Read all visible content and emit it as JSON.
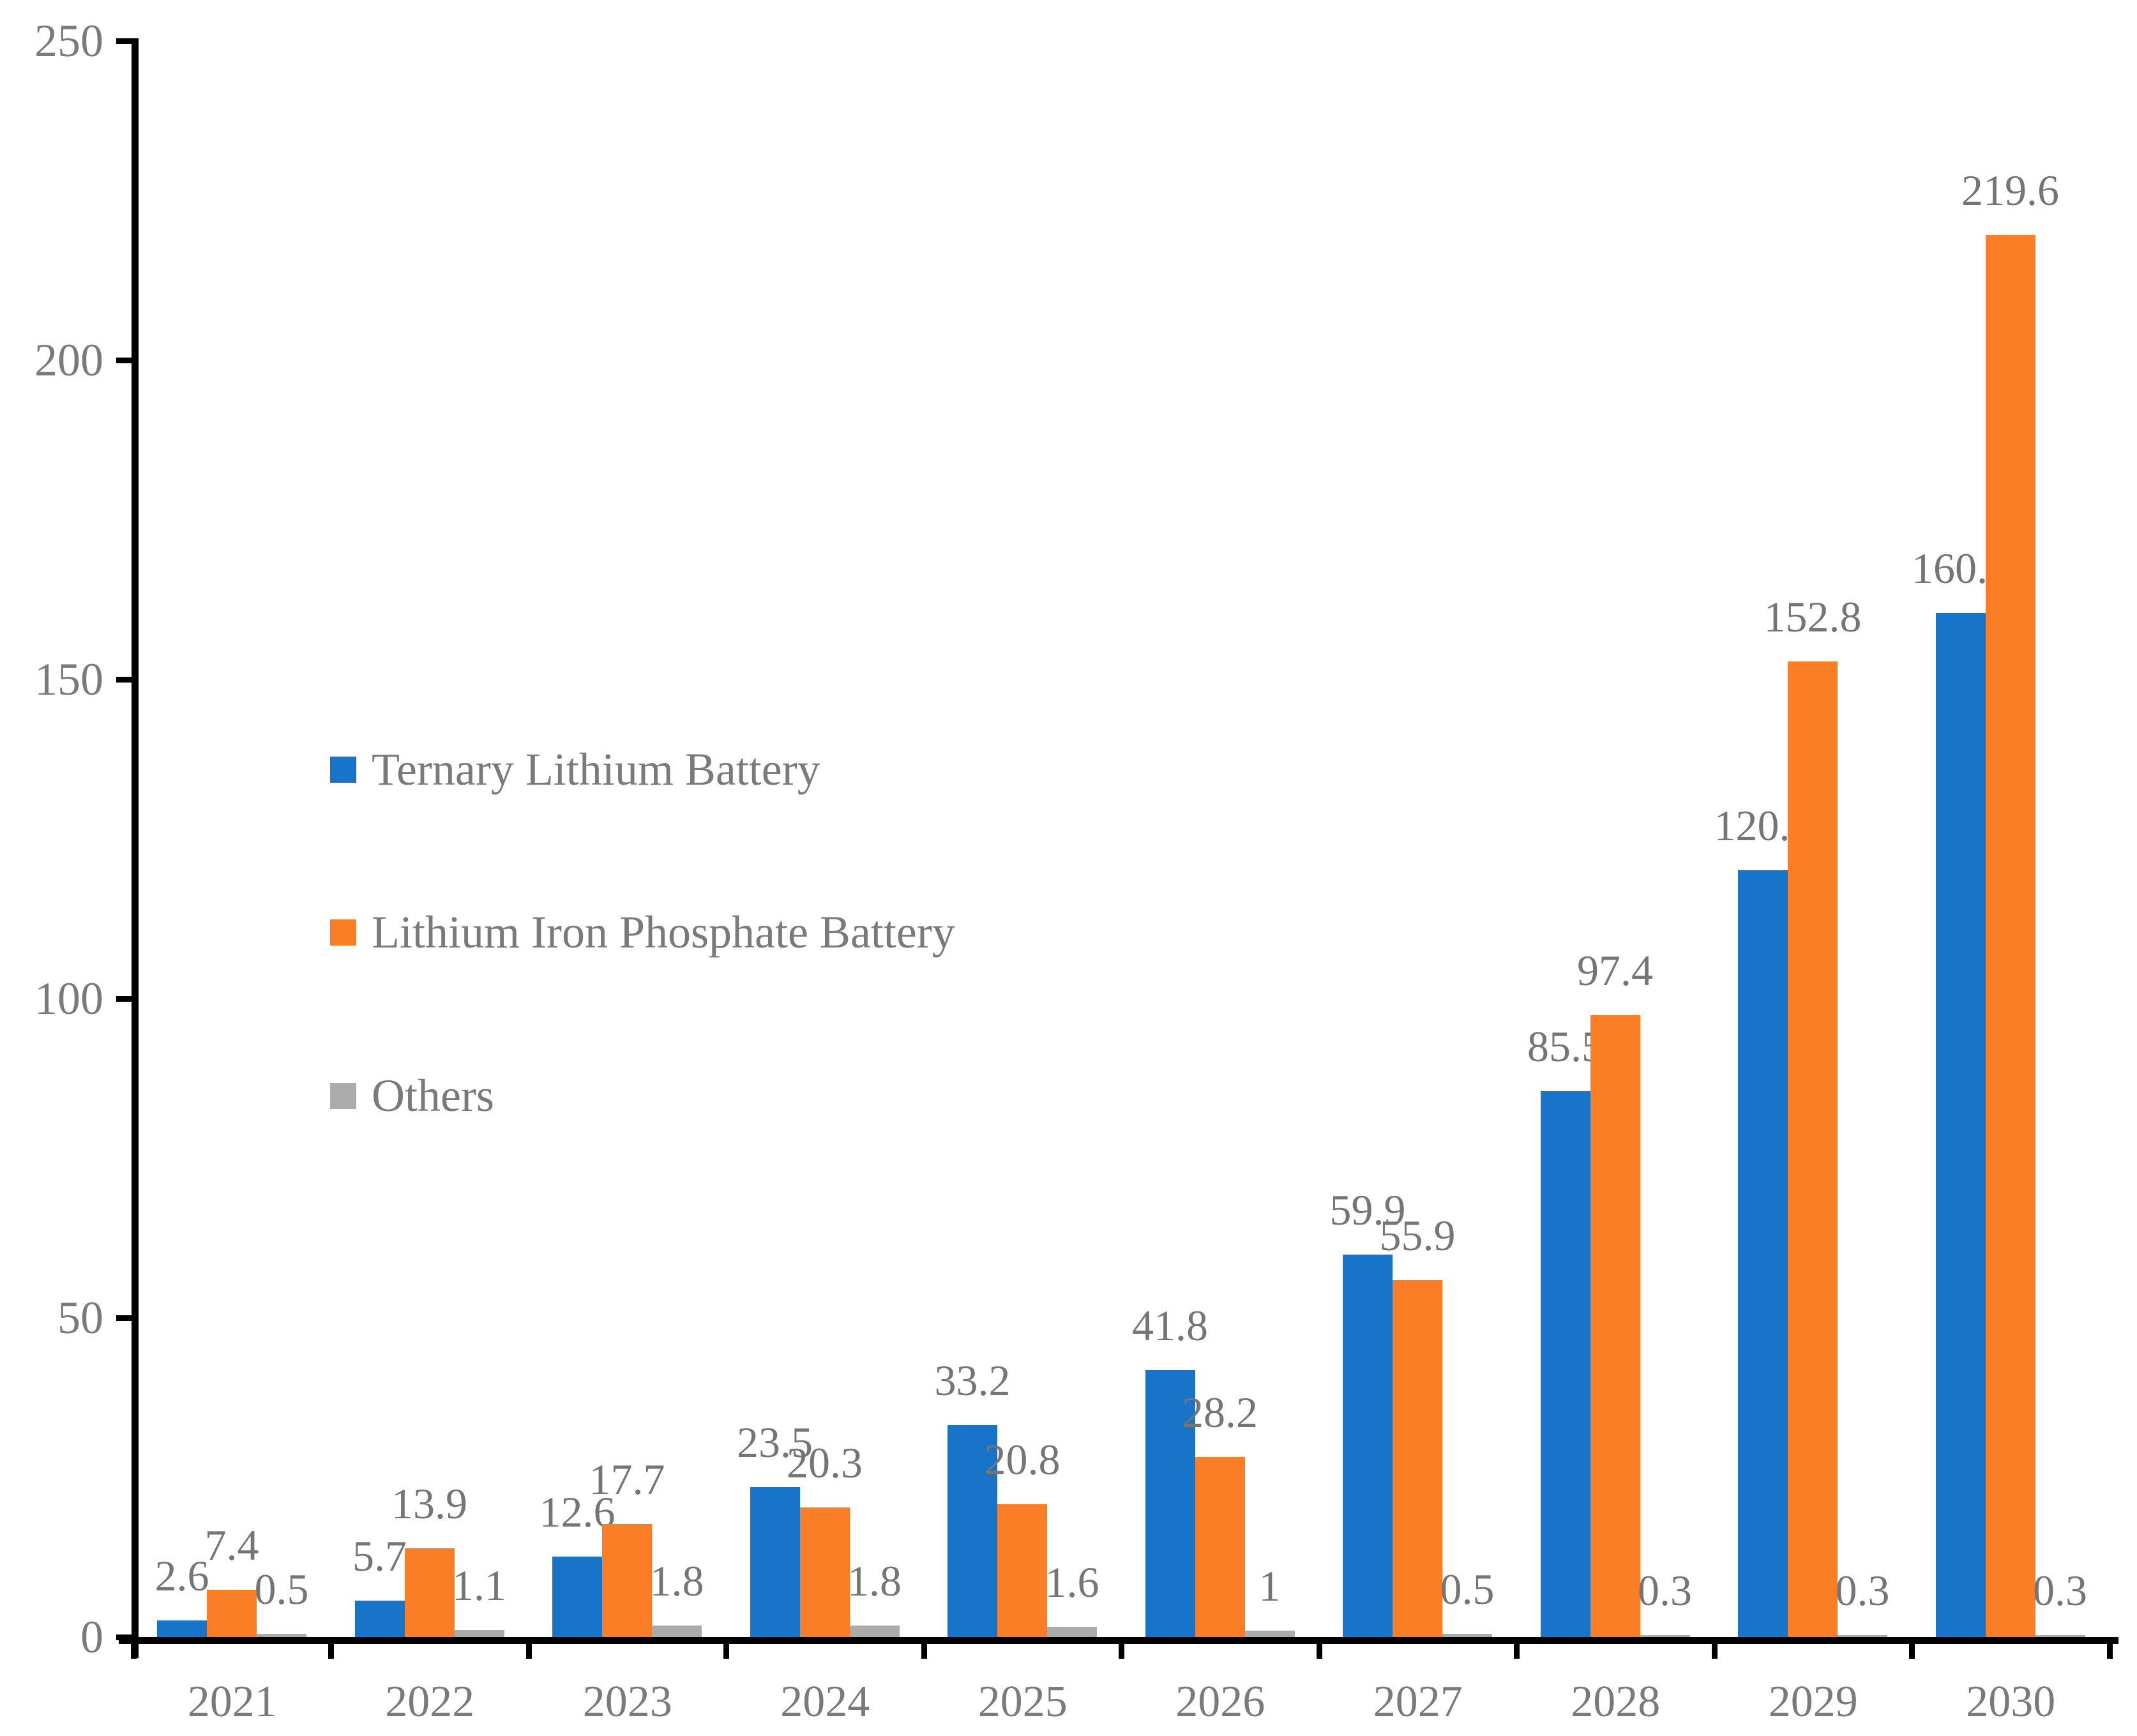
{
  "chart_data": {
    "type": "bar",
    "title": "",
    "xlabel": "",
    "ylabel": "",
    "categories": [
      "2021",
      "2022",
      "2023",
      "2024",
      "2025",
      "2026",
      "2027",
      "2028",
      "2029",
      "2030"
    ],
    "series": [
      {
        "name": "Ternary Lithium Battery",
        "color": "#1774C8",
        "values": [
          2.6,
          5.7,
          12.6,
          23.5,
          33.2,
          41.8,
          59.9,
          85.5,
          120.1,
          160.4
        ]
      },
      {
        "name": "Lithium Iron Phosphate Battery",
        "color": "#FB7D26",
        "values": [
          7.4,
          13.9,
          17.7,
          20.3,
          20.8,
          28.2,
          55.9,
          97.4,
          152.8,
          219.6
        ]
      },
      {
        "name": "Others",
        "color": "#ABABAB",
        "values": [
          0.5,
          1.1,
          1.8,
          1.8,
          1.6,
          1,
          0.5,
          0.3,
          0.3,
          0.3
        ]
      }
    ],
    "ylim": [
      0,
      250
    ],
    "yticks": [
      0,
      50,
      100,
      150,
      200,
      250
    ],
    "grid": false,
    "data_labels": true,
    "legend_position": "inside-left"
  },
  "style": {
    "axis_color": "#000000",
    "text_color": "#7A7A7A",
    "background": "#FFFFFF"
  }
}
